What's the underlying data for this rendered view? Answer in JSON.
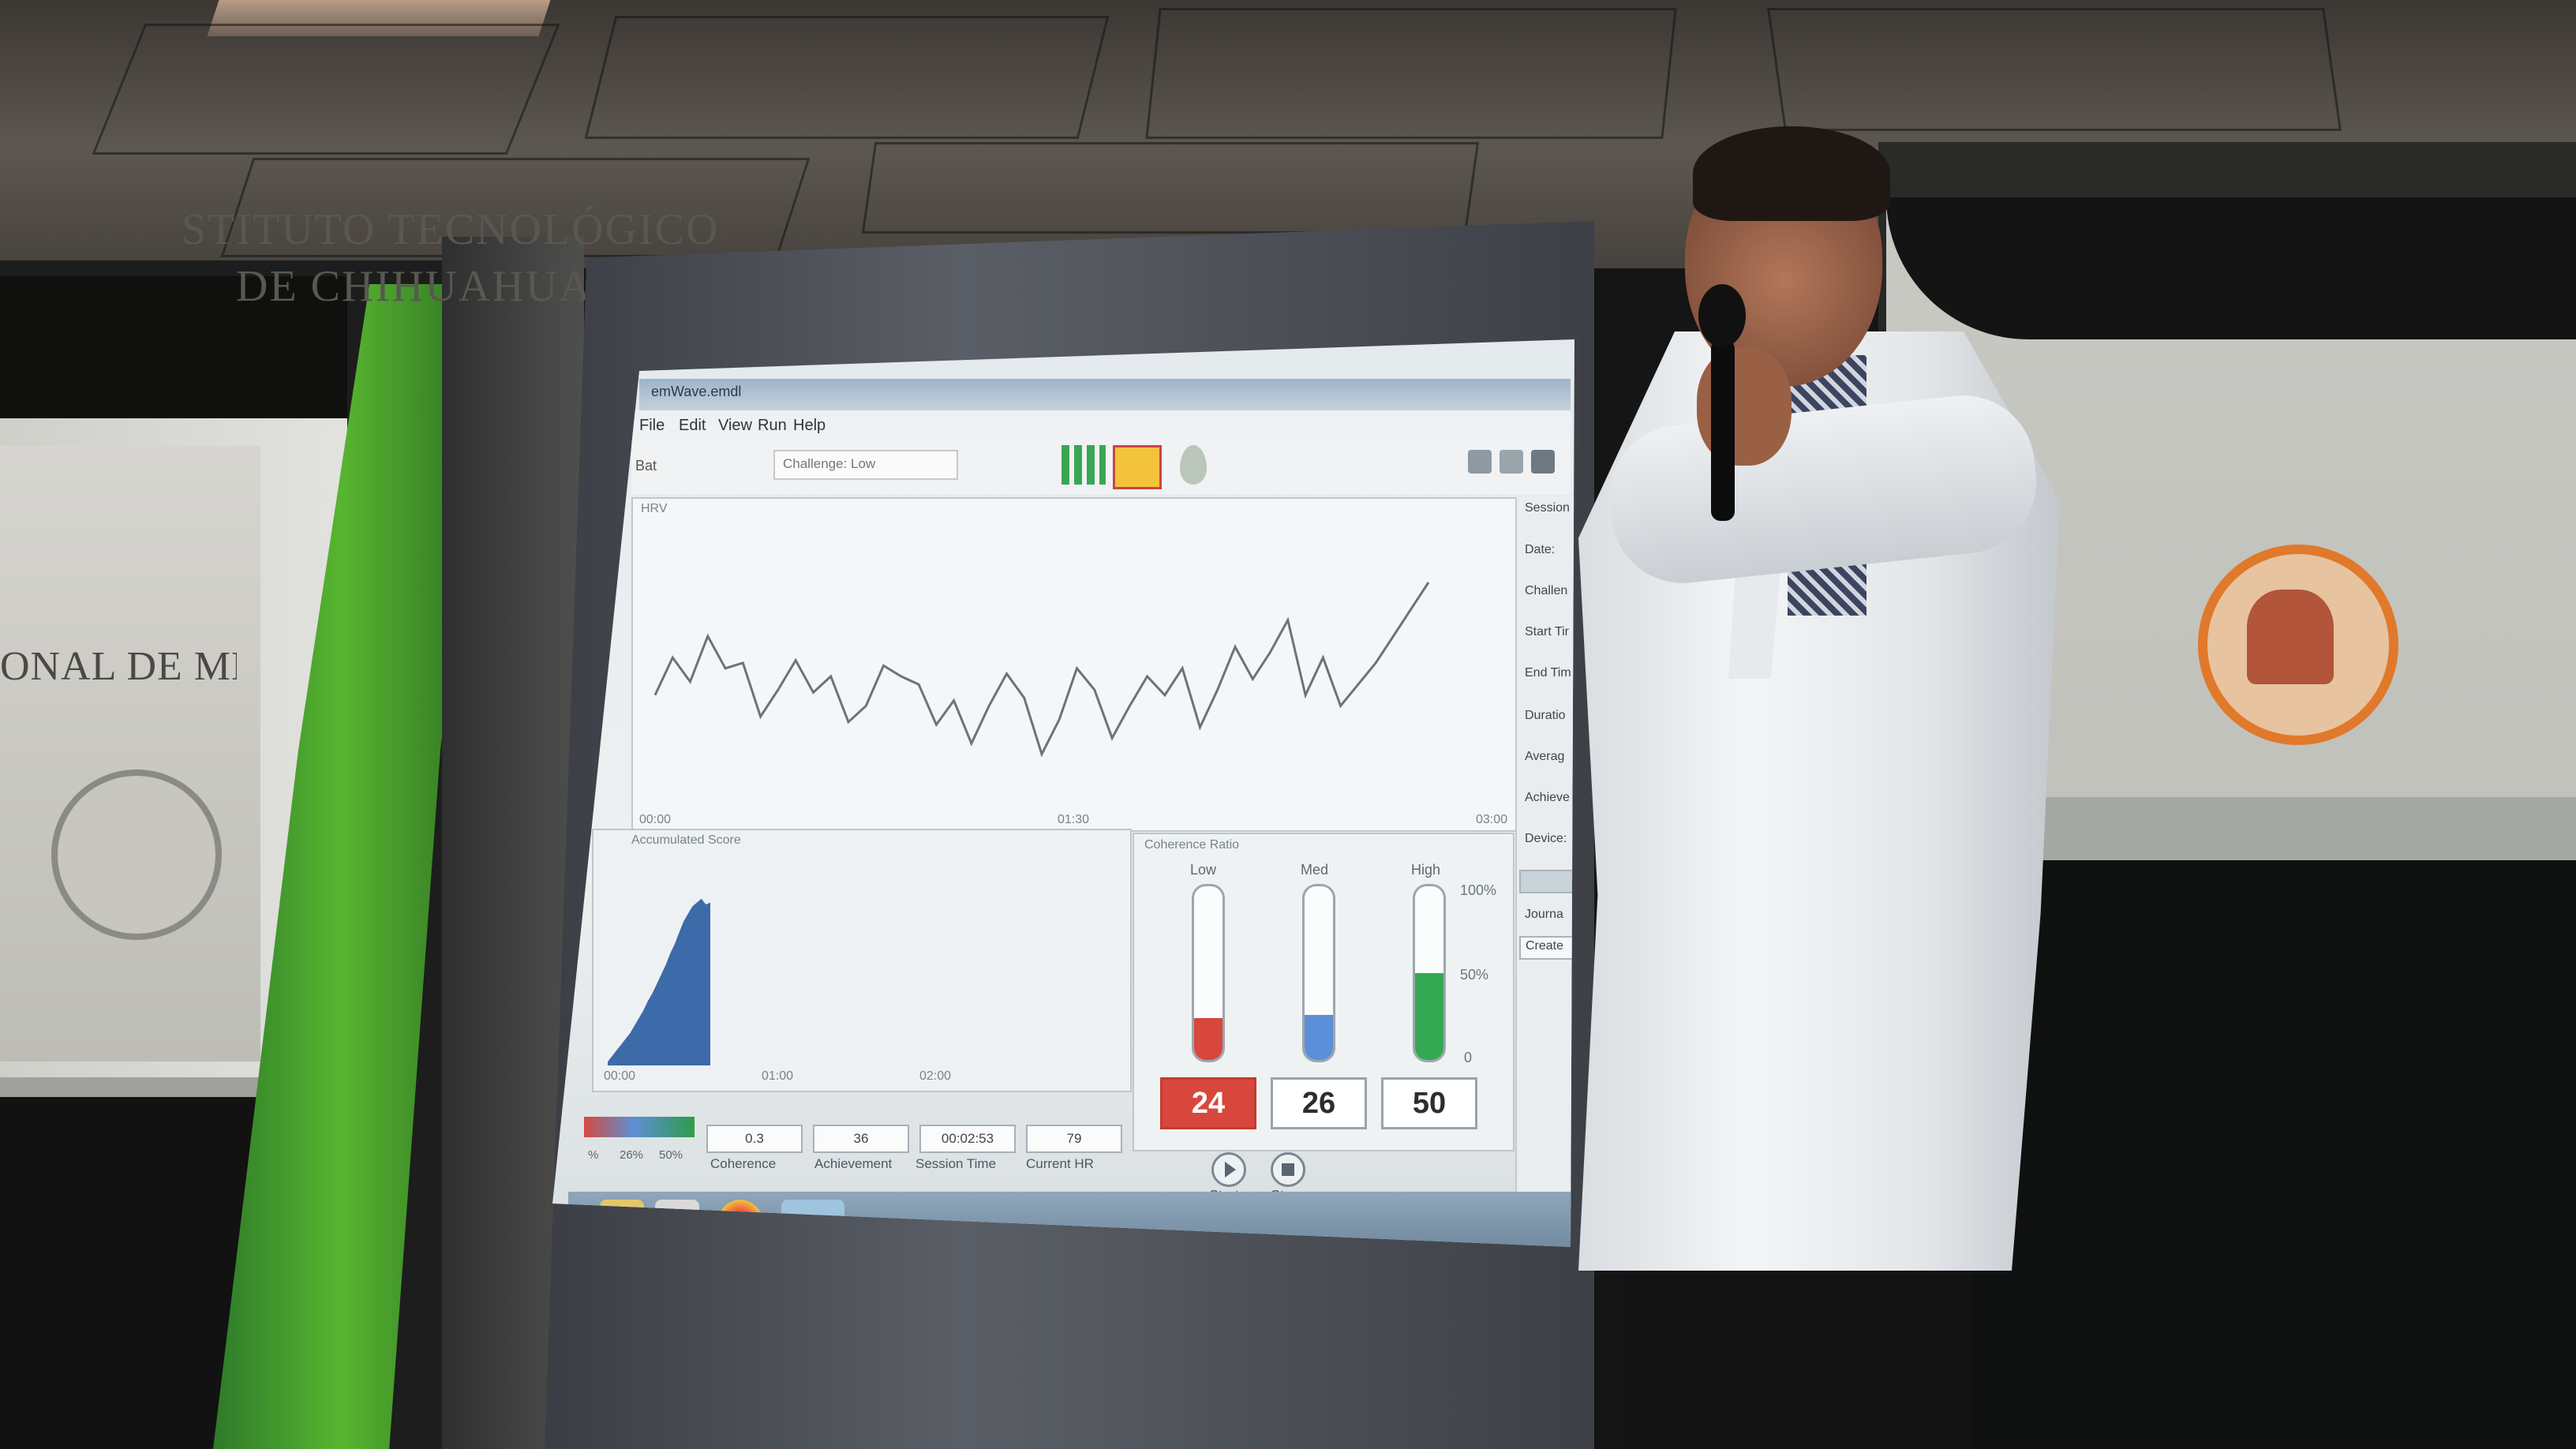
{
  "room": {
    "left_sign_text": "ONAL DE MÉXICO",
    "right_sign_line1": "STITUTO TECNOLÓGICO",
    "right_sign_line2": "DE CHIHUAHUA II"
  },
  "app": {
    "window_title": "emWave.emdl",
    "menu": [
      "File",
      "Edit",
      "View",
      "Run",
      "Help"
    ],
    "toolbar": {
      "left_label": "Bat",
      "challenge_field": "Challenge: Low"
    },
    "hrv_panel": {
      "title": "HRV",
      "x_ticks": [
        "00:00",
        "01:30",
        "03:00"
      ],
      "series": [
        62,
        48,
        57,
        40,
        52,
        50,
        70,
        60,
        49,
        61,
        55,
        72,
        66,
        51,
        55,
        58,
        73,
        64,
        80,
        66,
        54,
        63,
        84,
        71,
        52,
        60,
        78,
        66,
        55,
        62,
        52,
        74,
        60,
        44,
        56,
        46,
        34,
        62,
        48,
        66,
        58,
        50,
        40,
        30,
        20
      ]
    },
    "accumulated_panel": {
      "title": "Accumulated Score",
      "x_ticks": [
        "00:00",
        "01:00",
        "02:00"
      ],
      "values": [
        2,
        5,
        8,
        11,
        14,
        17,
        21,
        25,
        29,
        34,
        38,
        43,
        48,
        53,
        59,
        64,
        70,
        76,
        80,
        84,
        86,
        88,
        85,
        86
      ]
    },
    "coherence_panel": {
      "title": "Coherence Ratio",
      "levels": [
        {
          "label": "Low",
          "value": "24",
          "fraction": 0.24,
          "color": "#d8473c"
        },
        {
          "label": "Med",
          "value": "26",
          "fraction": 0.26,
          "color": "#5b8fd8"
        },
        {
          "label": "High",
          "value": "50",
          "fraction": 0.5,
          "color": "#34a853"
        }
      ],
      "scale": [
        "100%",
        "50%",
        "0"
      ]
    },
    "sidebar": {
      "labels": [
        "Session",
        "Date:",
        "Challen",
        "Start Tir",
        "End Tim",
        "Duratio",
        "Averag",
        "Achieve",
        "Device:",
        "Journa"
      ],
      "create_button": "Create"
    },
    "status": {
      "scale_labels": [
        "%",
        "26%",
        "50%"
      ],
      "coherence": "0.3",
      "coherence_label": "Coherence",
      "achievement": "36",
      "achievement_label": "Achievement",
      "session_time": "00:02:53",
      "session_time_label": "Session Time",
      "current_hr": "79",
      "current_hr_label": "Current HR"
    },
    "controls": {
      "start_label": "Start",
      "stop_label": "Stop"
    }
  }
}
